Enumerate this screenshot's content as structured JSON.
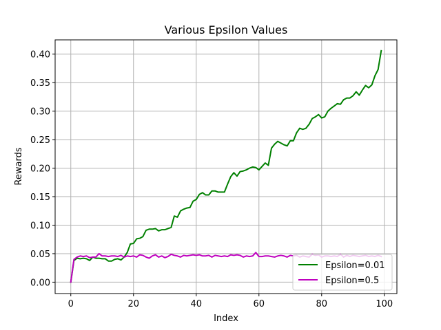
{
  "chart_data": {
    "type": "line",
    "title": "Various Epsilon Values",
    "xlabel": "Index",
    "ylabel": "Rewards",
    "xlim": [
      -5,
      104
    ],
    "ylim": [
      -0.02,
      0.425
    ],
    "xticks": [
      0,
      20,
      40,
      60,
      80,
      100
    ],
    "yticks": [
      0.0,
      0.05,
      0.1,
      0.15,
      0.2,
      0.25,
      0.3,
      0.35,
      0.4
    ],
    "xtick_labels": [
      "0",
      "20",
      "40",
      "60",
      "80",
      "100"
    ],
    "ytick_labels": [
      "0.00",
      "0.05",
      "0.10",
      "0.15",
      "0.20",
      "0.25",
      "0.30",
      "0.35",
      "0.40"
    ],
    "grid": true,
    "legend_position": "lower-right",
    "series": [
      {
        "name": "Epsilon=0.01",
        "color": "#008000",
        "y": [
          0.0,
          0.038,
          0.042,
          0.041,
          0.042,
          0.041,
          0.038,
          0.044,
          0.042,
          0.042,
          0.041,
          0.041,
          0.037,
          0.037,
          0.04,
          0.041,
          0.039,
          0.044,
          0.052,
          0.067,
          0.068,
          0.076,
          0.077,
          0.08,
          0.091,
          0.093,
          0.093,
          0.094,
          0.09,
          0.092,
          0.092,
          0.094,
          0.096,
          0.116,
          0.114,
          0.125,
          0.128,
          0.13,
          0.131,
          0.142,
          0.145,
          0.154,
          0.157,
          0.153,
          0.153,
          0.16,
          0.16,
          0.158,
          0.158,
          0.158,
          0.172,
          0.185,
          0.192,
          0.186,
          0.194,
          0.195,
          0.197,
          0.2,
          0.202,
          0.201,
          0.197,
          0.203,
          0.209,
          0.205,
          0.235,
          0.242,
          0.247,
          0.244,
          0.241,
          0.239,
          0.248,
          0.248,
          0.262,
          0.27,
          0.268,
          0.27,
          0.277,
          0.287,
          0.29,
          0.294,
          0.288,
          0.29,
          0.3,
          0.305,
          0.309,
          0.313,
          0.312,
          0.32,
          0.323,
          0.323,
          0.327,
          0.334,
          0.328,
          0.337,
          0.345,
          0.341,
          0.346,
          0.362,
          0.373,
          0.406
        ]
      },
      {
        "name": "Epsilon=0.5",
        "color": "#bf00bf",
        "y": [
          0.0,
          0.04,
          0.044,
          0.046,
          0.045,
          0.046,
          0.043,
          0.044,
          0.044,
          0.05,
          0.046,
          0.046,
          0.045,
          0.046,
          0.046,
          0.045,
          0.047,
          0.044,
          0.046,
          0.045,
          0.046,
          0.044,
          0.048,
          0.047,
          0.044,
          0.042,
          0.046,
          0.048,
          0.044,
          0.046,
          0.043,
          0.045,
          0.049,
          0.047,
          0.046,
          0.044,
          0.047,
          0.046,
          0.047,
          0.048,
          0.047,
          0.048,
          0.046,
          0.046,
          0.047,
          0.044,
          0.047,
          0.046,
          0.045,
          0.046,
          0.045,
          0.048,
          0.047,
          0.048,
          0.047,
          0.044,
          0.046,
          0.045,
          0.046,
          0.052,
          0.045,
          0.045,
          0.046,
          0.046,
          0.045,
          0.044,
          0.046,
          0.047,
          0.046,
          0.044,
          0.047,
          0.046,
          0.047,
          0.044,
          0.046,
          0.045,
          0.044,
          0.049,
          0.047,
          0.048,
          0.044,
          0.046,
          0.046,
          0.045,
          0.046,
          0.045,
          0.049,
          0.044,
          0.047,
          0.045,
          0.047,
          0.046,
          0.045,
          0.046,
          0.047,
          0.045,
          0.046,
          0.045,
          0.047,
          0.045
        ]
      }
    ]
  }
}
